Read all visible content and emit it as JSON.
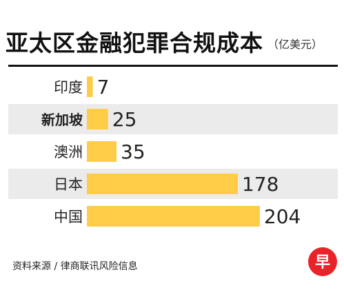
{
  "title": "亚太区金融犯罪合规成本",
  "unit": "（亿美元）",
  "source": "资料来源 / 律商联讯风险信息",
  "logo_char": "早",
  "colors": {
    "bar": "#ffcc47",
    "band": "#ebebeb",
    "text": "#222222",
    "logo": "#e8232a"
  },
  "chart_data": {
    "type": "bar",
    "orientation": "horizontal",
    "categories": [
      "印度",
      "新加坡",
      "澳洲",
      "日本",
      "中国"
    ],
    "values": [
      7,
      25,
      35,
      178,
      204
    ],
    "highlighted_category": "新加坡",
    "title": "亚太区金融犯罪合规成本",
    "xlabel": "",
    "ylabel": "",
    "unit": "亿美元",
    "banded_rows": [
      false,
      true,
      false,
      true,
      false
    ]
  }
}
